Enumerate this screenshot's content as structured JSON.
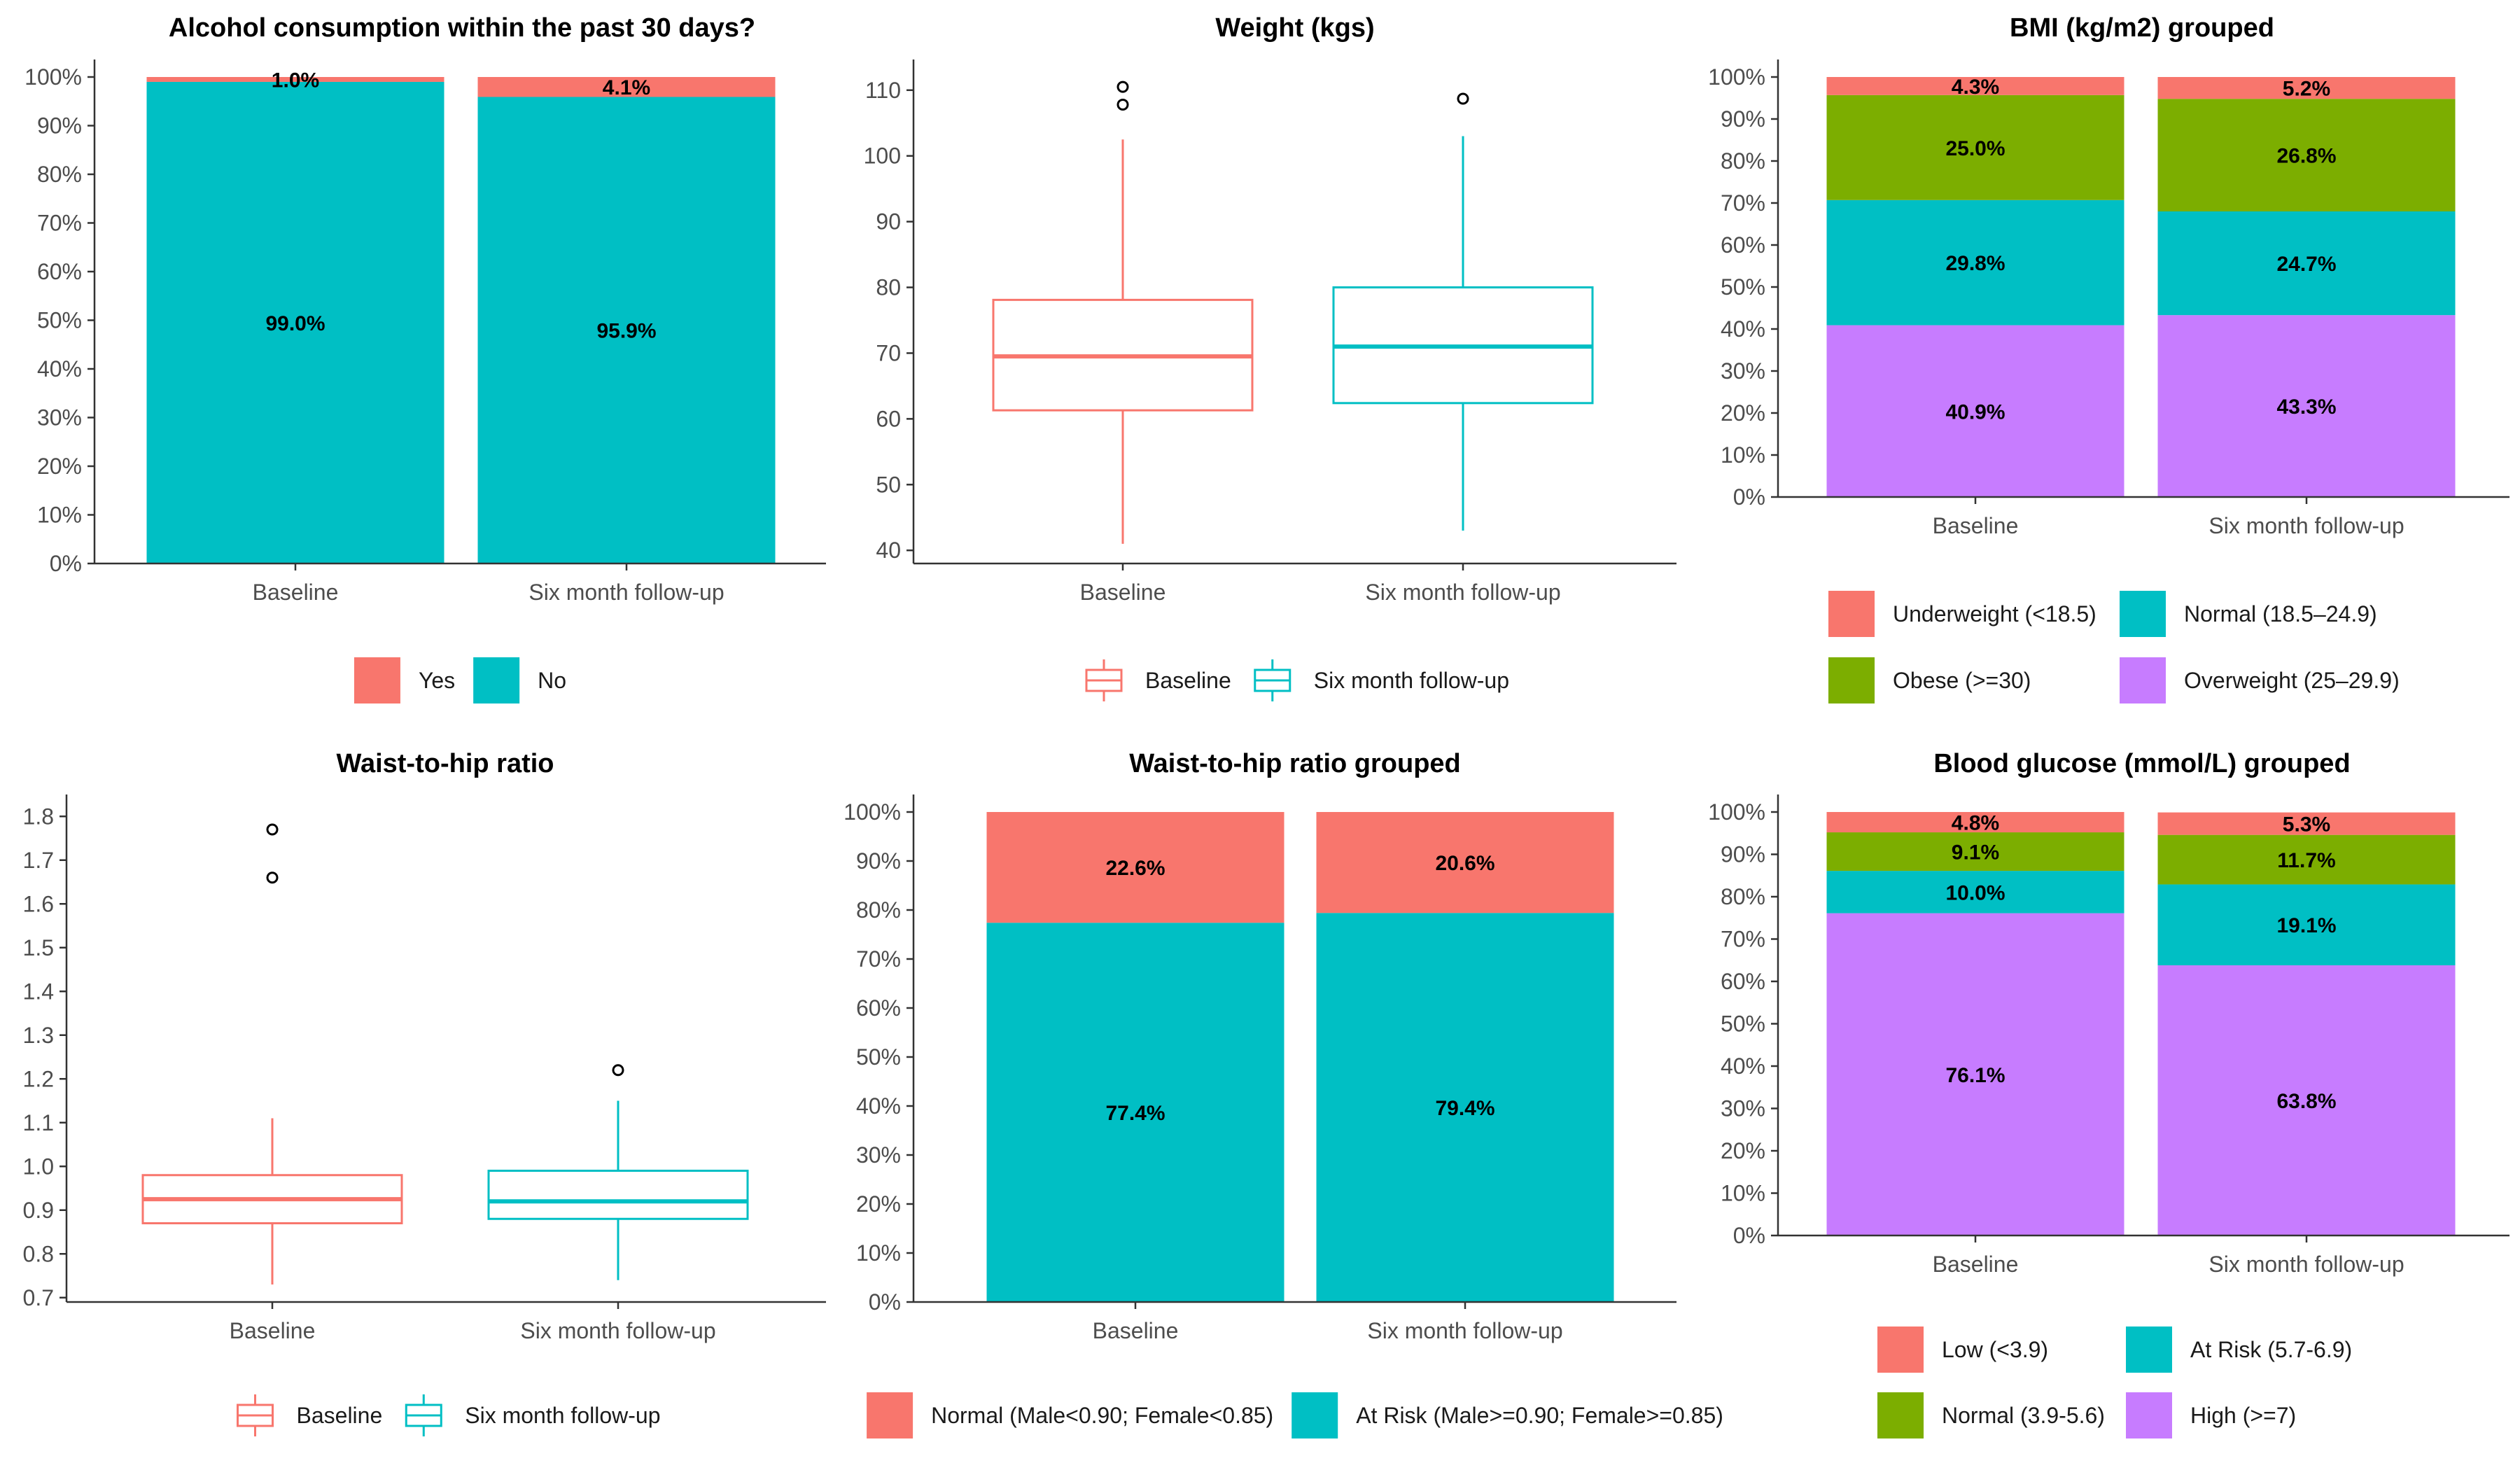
{
  "colors": {
    "Yes": "#F8766D",
    "No": "#00BFC4",
    "Baseline": "#F8766D",
    "Six month follow-up": "#00BFC4",
    "Underweight (<18.5)": "#F8766D",
    "Normal (18.5–24.9)": "#00BFC4",
    "Obese (>=30)": "#7CAE00",
    "Overweight (25–29.9)": "#C77CFF",
    "Normal (Male<0.90; Female<0.85)": "#F8766D",
    "At Risk (Male>=0.90; Female>=0.85)": "#00BFC4",
    "Low (<3.9)": "#F8766D",
    "At Risk (5.7-6.9)": "#00BFC4",
    "Normal (3.9-5.6)": "#7CAE00",
    "High (>=7)": "#C77CFF"
  },
  "chart_data": [
    {
      "id": "alcohol",
      "type": "bar",
      "stacked": true,
      "title": "Alcohol consumption within the past 30 days?",
      "categories": [
        "Baseline",
        "Six month follow-up"
      ],
      "series": [
        {
          "name": "No",
          "values": [
            99.0,
            95.9
          ],
          "labels": [
            "99.0%",
            "95.9%"
          ]
        },
        {
          "name": "Yes",
          "values": [
            1.0,
            4.1
          ],
          "labels": [
            "1.0%",
            "4.1%"
          ]
        }
      ],
      "ylim": [
        0,
        100
      ],
      "yticks": [
        "0%",
        "10%",
        "20%",
        "30%",
        "40%",
        "50%",
        "60%",
        "70%",
        "80%",
        "90%",
        "100%"
      ],
      "legend": [
        "Yes",
        "No"
      ],
      "legend_position": "bottom"
    },
    {
      "id": "weight",
      "type": "boxplot",
      "title": "Weight (kgs)",
      "categories": [
        "Baseline",
        "Six month follow-up"
      ],
      "boxes": [
        {
          "name": "Baseline",
          "whisker_low": 41,
          "q1": 61.3,
          "median": 69.5,
          "q3": 78.1,
          "whisker_high": 102.5,
          "outliers": [
            107.8,
            110.5
          ]
        },
        {
          "name": "Six month follow-up",
          "whisker_low": 43,
          "q1": 62.4,
          "median": 71,
          "q3": 80,
          "whisker_high": 103,
          "outliers": [
            108.7
          ]
        }
      ],
      "ylim": [
        38,
        112
      ],
      "yticks": [
        40,
        50,
        60,
        70,
        80,
        90,
        100,
        110
      ],
      "legend": [
        "Baseline",
        "Six month follow-up"
      ],
      "legend_position": "bottom"
    },
    {
      "id": "bmi",
      "type": "bar",
      "stacked": true,
      "title": "BMI (kg/m2) grouped",
      "categories": [
        "Baseline",
        "Six month follow-up"
      ],
      "series": [
        {
          "name": "Overweight (25–29.9)",
          "values": [
            40.9,
            43.3
          ],
          "labels": [
            "40.9%",
            "43.3%"
          ]
        },
        {
          "name": "Normal (18.5–24.9)",
          "values": [
            29.8,
            24.7
          ],
          "labels": [
            "29.8%",
            "24.7%"
          ]
        },
        {
          "name": "Obese (>=30)",
          "values": [
            25.0,
            26.8
          ],
          "labels": [
            "25.0%",
            "26.8%"
          ]
        },
        {
          "name": "Underweight (<18.5)",
          "values": [
            4.3,
            5.2
          ],
          "labels": [
            "4.3%",
            "5.2%"
          ]
        }
      ],
      "ylim": [
        0,
        100
      ],
      "yticks": [
        "0%",
        "10%",
        "20%",
        "30%",
        "40%",
        "50%",
        "60%",
        "70%",
        "80%",
        "90%",
        "100%"
      ],
      "legend": [
        "Underweight (<18.5)",
        "Normal (18.5–24.9)",
        "Obese (>=30)",
        "Overweight (25–29.9)"
      ],
      "legend_position": "bottom"
    },
    {
      "id": "whr",
      "type": "boxplot",
      "title": "Waist-to-hip ratio",
      "categories": [
        "Baseline",
        "Six month follow-up"
      ],
      "boxes": [
        {
          "name": "Baseline",
          "whisker_low": 0.73,
          "q1": 0.87,
          "median": 0.925,
          "q3": 0.98,
          "whisker_high": 1.11,
          "outliers": [
            1.66,
            1.77
          ]
        },
        {
          "name": "Six month follow-up",
          "whisker_low": 0.74,
          "q1": 0.88,
          "median": 0.92,
          "q3": 0.99,
          "whisker_high": 1.15,
          "outliers": [
            1.22
          ]
        }
      ],
      "ylim": [
        0.69,
        1.81
      ],
      "yticks": [
        "0.7",
        "0.8",
        "0.9",
        "1.0",
        "1.1",
        "1.2",
        "1.3",
        "1.4",
        "1.5",
        "1.6",
        "1.7",
        "1.8"
      ],
      "legend": [
        "Baseline",
        "Six month follow-up"
      ],
      "legend_position": "bottom"
    },
    {
      "id": "whrg",
      "type": "bar",
      "stacked": true,
      "title": "Waist-to-hip ratio grouped",
      "categories": [
        "Baseline",
        "Six month follow-up"
      ],
      "series": [
        {
          "name": "At Risk (Male>=0.90; Female>=0.85)",
          "values": [
            77.4,
            79.4
          ],
          "labels": [
            "77.4%",
            "79.4%"
          ]
        },
        {
          "name": "Normal (Male<0.90; Female<0.85)",
          "values": [
            22.6,
            20.6
          ],
          "labels": [
            "22.6%",
            "20.6%"
          ]
        }
      ],
      "ylim": [
        0,
        100
      ],
      "yticks": [
        "0%",
        "10%",
        "20%",
        "30%",
        "40%",
        "50%",
        "60%",
        "70%",
        "80%",
        "90%",
        "100%"
      ],
      "legend": [
        "Normal (Male<0.90; Female<0.85)",
        "At Risk (Male>=0.90; Female>=0.85)"
      ],
      "legend_position": "bottom"
    },
    {
      "id": "glucose",
      "type": "bar",
      "stacked": true,
      "title": "Blood glucose (mmol/L) grouped",
      "categories": [
        "Baseline",
        "Six month follow-up"
      ],
      "series": [
        {
          "name": "High (>=7)",
          "values": [
            76.1,
            63.8
          ],
          "labels": [
            "76.1%",
            "63.8%"
          ]
        },
        {
          "name": "At Risk (5.7-6.9)",
          "values": [
            10.0,
            19.1
          ],
          "labels": [
            "10.0%",
            "19.1%"
          ]
        },
        {
          "name": "Normal (3.9-5.6)",
          "values": [
            9.1,
            11.7
          ],
          "labels": [
            "9.1%",
            "11.7%"
          ]
        },
        {
          "name": "Low (<3.9)",
          "values": [
            4.8,
            5.3
          ],
          "labels": [
            "4.8%",
            "5.3%"
          ]
        }
      ],
      "ylim": [
        0,
        100
      ],
      "yticks": [
        "0%",
        "10%",
        "20%",
        "30%",
        "40%",
        "50%",
        "60%",
        "70%",
        "80%",
        "90%",
        "100%"
      ],
      "legend": [
        "Low (<3.9)",
        "At Risk (5.7-6.9)",
        "Normal (3.9-5.6)",
        "High (>=7)"
      ],
      "legend_position": "bottom"
    }
  ]
}
